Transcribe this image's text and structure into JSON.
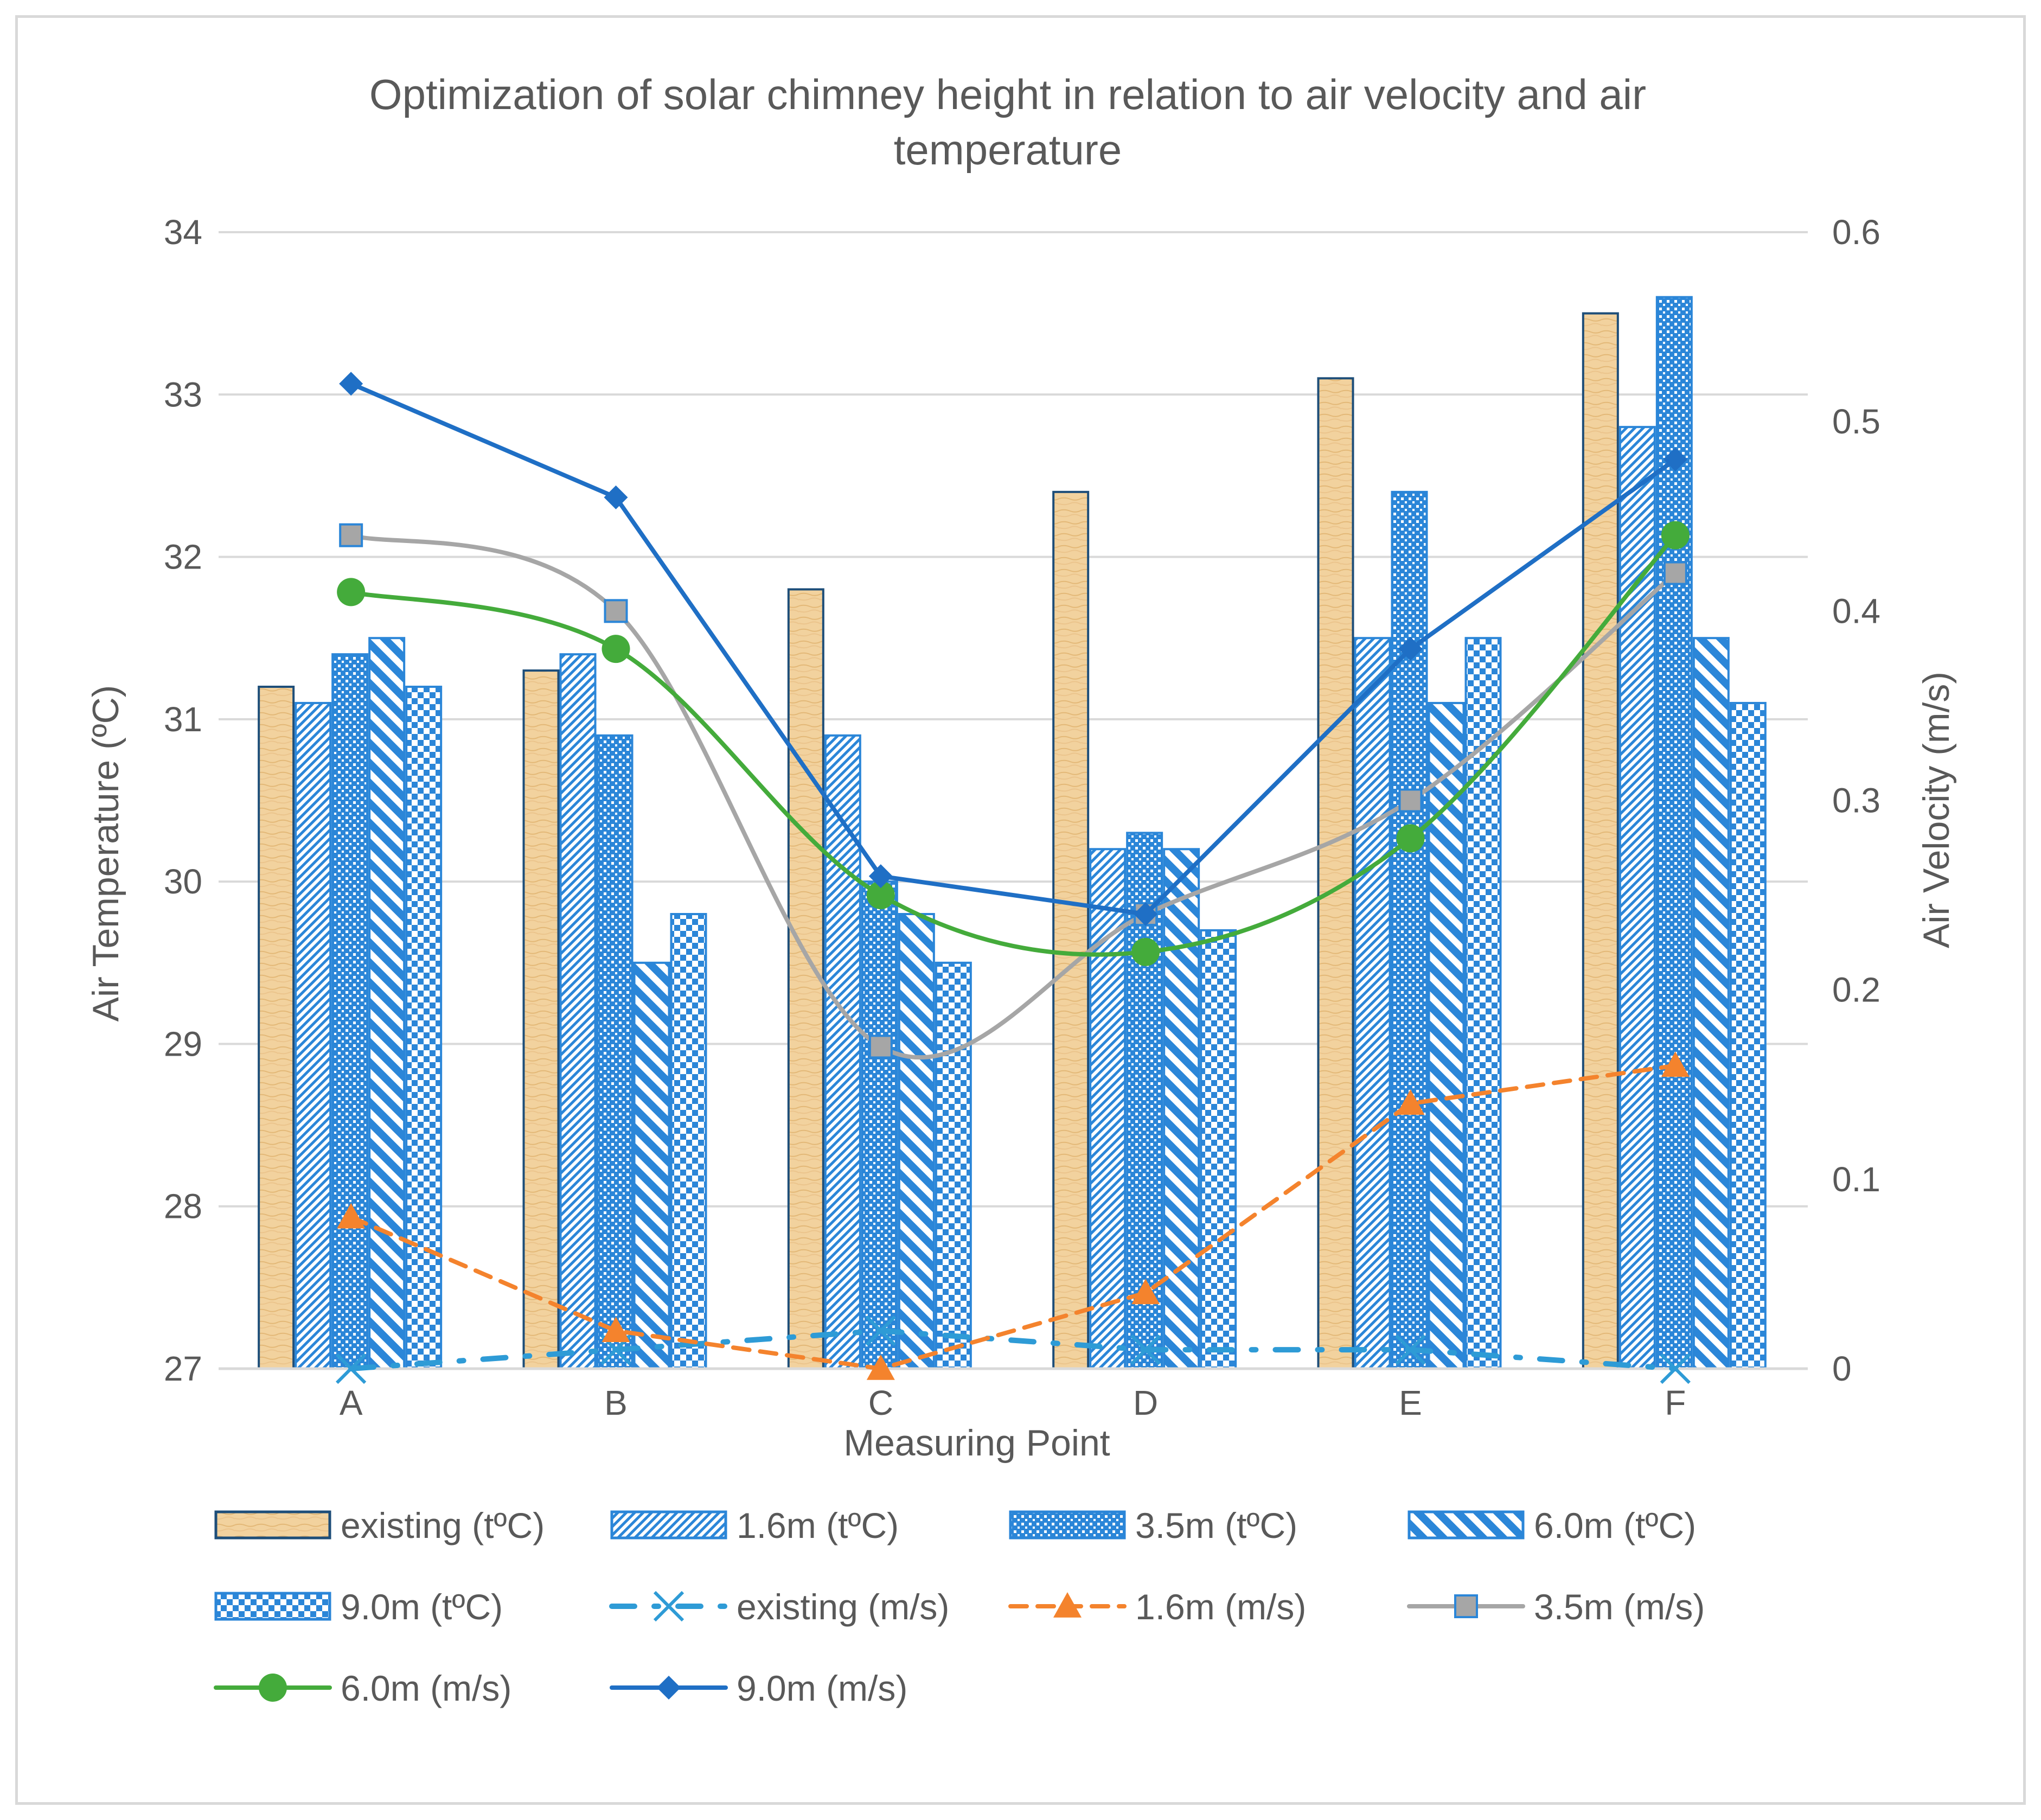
{
  "chart_data": {
    "type": "bar",
    "title": "Optimization of solar chimney height in relation to air velocity and air temperature",
    "title_lines": [
      "Optimization of solar chimney height in relation to air velocity and air",
      "temperature"
    ],
    "xlabel": "Measuring Point",
    "ylabel": "Air Temperature (ºC)",
    "y2label": "Air Velocity (m/s)",
    "categories": [
      "A",
      "B",
      "C",
      "D",
      "E",
      "F"
    ],
    "ylim": [
      27,
      34
    ],
    "yticks": [
      "27",
      "28",
      "29",
      "30",
      "31",
      "32",
      "33",
      "34"
    ],
    "y2lim": [
      0,
      0.6
    ],
    "y2ticks": [
      "0",
      "0.1",
      "0.2",
      "0.3",
      "0.4",
      "0.5",
      "0.6"
    ],
    "grid": true,
    "legend_position": "bottom",
    "bar_series": [
      {
        "name": "existing (tºC)",
        "pattern": "existing",
        "values": [
          31.2,
          31.3,
          31.8,
          32.4,
          33.1,
          33.5
        ]
      },
      {
        "name": "1.6m  (tºC)",
        "pattern": "diag-fine",
        "values": [
          31.1,
          31.4,
          30.9,
          30.2,
          31.5,
          32.8
        ]
      },
      {
        "name": "3.5m  (tºC)",
        "pattern": "dots",
        "values": [
          31.4,
          30.9,
          30.0,
          30.3,
          32.4,
          33.6
        ]
      },
      {
        "name": "6.0m  (tºC)",
        "pattern": "diag-wide",
        "values": [
          31.5,
          29.5,
          29.8,
          30.2,
          31.1,
          31.5
        ]
      },
      {
        "name": "9.0m  (tºC)",
        "pattern": "checker",
        "values": [
          31.2,
          29.8,
          29.5,
          29.7,
          31.5,
          31.1
        ]
      }
    ],
    "line_series": [
      {
        "name": "existing (m/s)",
        "values": [
          0.0,
          0.01,
          0.02,
          0.01,
          0.01,
          0.0
        ],
        "color": "#2e9bd6",
        "marker": "x",
        "dash": "dashdot"
      },
      {
        "name": "1.6m (m/s)",
        "values": [
          0.08,
          0.02,
          0.0,
          0.04,
          0.14,
          0.16
        ],
        "color": "#f4832d",
        "marker": "triangle",
        "dash": "dash"
      },
      {
        "name": "3.5m (m/s)",
        "values": [
          0.44,
          0.4,
          0.17,
          0.24,
          0.3,
          0.42
        ],
        "color": "#a6a6a6",
        "marker": "square",
        "dash": "solid"
      },
      {
        "name": "6.0m (m/s)",
        "values": [
          0.41,
          0.38,
          0.25,
          0.22,
          0.28,
          0.44
        ],
        "color": "#44ab3b",
        "marker": "circle",
        "dash": "solid"
      },
      {
        "name": "9.0m (m/s)",
        "values": [
          0.52,
          0.46,
          0.26,
          0.24,
          0.38,
          0.48
        ],
        "color": "#1f6fc5",
        "marker": "diamond",
        "dash": "solid"
      }
    ]
  },
  "colors": {
    "bar_blue": "#2b86d8",
    "bar_tan": "#f2d29e",
    "bar_tan_edge": "#1e4e79",
    "grid": "#d9d9d9",
    "text": "#595959"
  }
}
